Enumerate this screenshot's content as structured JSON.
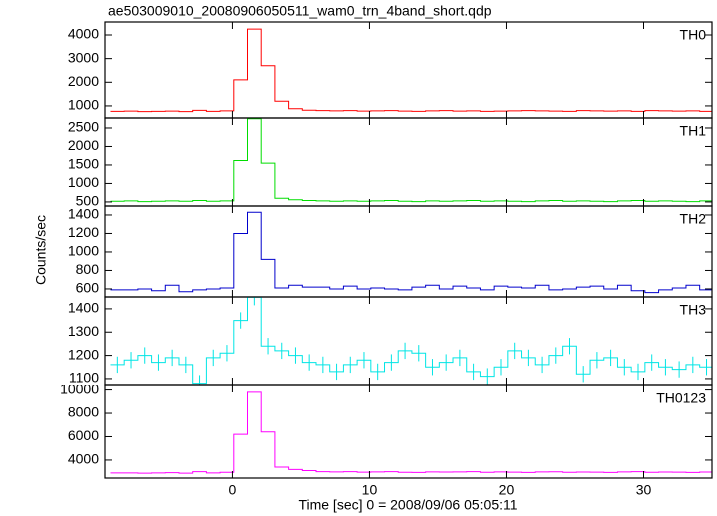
{
  "chart_data": [
    {
      "type": "step",
      "title": "ae503009010_20080906050511_wam0_trn_4band_short.qdp",
      "xlim": [
        -9.3,
        35
      ],
      "xticks": [
        0,
        10,
        20,
        30
      ],
      "ylim": [
        490,
        4550
      ],
      "yticks": [
        1000,
        2000,
        3000,
        4000
      ],
      "series": [
        {
          "name": "TH0",
          "color": "#ff0000",
          "x": [
            -8.4,
            -7.4,
            -6.4,
            -5.4,
            -4.4,
            -3.4,
            -2.4,
            -1.4,
            -0.4,
            0.6,
            1.6,
            2.6,
            3.6,
            4.6,
            5.6,
            6.6,
            7.6,
            8.6,
            9.6,
            10.6,
            11.6,
            12.6,
            13.6,
            14.6,
            15.6,
            16.6,
            17.6,
            18.6,
            19.6,
            20.6,
            21.6,
            22.6,
            23.6,
            24.6,
            25.6,
            26.6,
            27.6,
            28.6,
            29.6,
            30.6,
            31.6,
            32.6,
            33.6,
            34.6
          ],
          "values": [
            770,
            780,
            760,
            770,
            780,
            760,
            810,
            770,
            790,
            2100,
            4250,
            2700,
            1200,
            880,
            820,
            800,
            790,
            800,
            780,
            790,
            800,
            780,
            770,
            790,
            800,
            780,
            790,
            770,
            780,
            790,
            800,
            790,
            780,
            770,
            800,
            790,
            780,
            790,
            770,
            800,
            790,
            780,
            790,
            770
          ]
        }
      ]
    },
    {
      "type": "step",
      "xlim": [
        -9.3,
        35
      ],
      "xticks": [
        0,
        10,
        20,
        30
      ],
      "ylim": [
        390,
        2770
      ],
      "yticks": [
        500,
        1000,
        1500,
        2000,
        2500
      ],
      "series": [
        {
          "name": "TH1",
          "color": "#00dd00",
          "x": [
            -8.4,
            -7.4,
            -6.4,
            -5.4,
            -4.4,
            -3.4,
            -2.4,
            -1.4,
            -0.4,
            0.6,
            1.6,
            2.6,
            3.6,
            4.6,
            5.6,
            6.6,
            7.6,
            8.6,
            9.6,
            10.6,
            11.6,
            12.6,
            13.6,
            14.6,
            15.6,
            16.6,
            17.6,
            18.6,
            19.6,
            20.6,
            21.6,
            22.6,
            23.6,
            24.6,
            25.6,
            26.6,
            27.6,
            28.6,
            29.6,
            30.6,
            31.6,
            32.6,
            33.6,
            34.6
          ],
          "values": [
            520,
            530,
            510,
            520,
            530,
            520,
            540,
            520,
            530,
            1620,
            2750,
            1550,
            600,
            560,
            540,
            530,
            520,
            530,
            520,
            530,
            540,
            520,
            510,
            530,
            520,
            530,
            540,
            520,
            530,
            520,
            510,
            530,
            540,
            520,
            530,
            520,
            510,
            530,
            540,
            520,
            530,
            520,
            510,
            530
          ]
        }
      ]
    },
    {
      "type": "step",
      "ylabel": "Counts/sec",
      "xlim": [
        -9.3,
        35
      ],
      "xticks": [
        0,
        10,
        20,
        30
      ],
      "ylim": [
        513,
        1497
      ],
      "yticks": [
        600,
        800,
        1000,
        1200,
        1400
      ],
      "series": [
        {
          "name": "TH2",
          "color": "#0000cc",
          "x": [
            -8.4,
            -7.4,
            -6.4,
            -5.4,
            -4.4,
            -3.4,
            -2.4,
            -1.4,
            -0.4,
            0.6,
            1.6,
            2.6,
            3.6,
            4.6,
            5.6,
            6.6,
            7.6,
            8.6,
            9.6,
            10.6,
            11.6,
            12.6,
            13.6,
            14.6,
            15.6,
            16.6,
            17.6,
            18.6,
            19.6,
            20.6,
            21.6,
            22.6,
            23.6,
            24.6,
            25.6,
            26.6,
            27.6,
            28.6,
            29.6,
            30.6,
            31.6,
            32.6,
            33.6,
            34.6
          ],
          "values": [
            590,
            590,
            600,
            580,
            640,
            570,
            590,
            600,
            610,
            1200,
            1430,
            920,
            610,
            640,
            620,
            620,
            600,
            630,
            600,
            610,
            600,
            590,
            620,
            640,
            600,
            630,
            610,
            590,
            630,
            620,
            610,
            640,
            590,
            600,
            620,
            630,
            600,
            640,
            580,
            560,
            590,
            610,
            640,
            590
          ]
        }
      ]
    },
    {
      "type": "step",
      "xlim": [
        -9.3,
        35
      ],
      "xticks": [
        0,
        10,
        20,
        30
      ],
      "ylim": [
        1074,
        1451
      ],
      "yticks": [
        1100,
        1200,
        1300,
        1400
      ],
      "series": [
        {
          "name": "TH3",
          "color": "#00e5e5",
          "x": [
            -8.4,
            -7.4,
            -6.4,
            -5.4,
            -4.4,
            -3.4,
            -2.4,
            -1.4,
            -0.4,
            0.6,
            1.6,
            2.6,
            3.6,
            4.6,
            5.6,
            6.6,
            7.6,
            8.6,
            9.6,
            10.6,
            11.6,
            12.6,
            13.6,
            14.6,
            15.6,
            16.6,
            17.6,
            18.6,
            19.6,
            20.6,
            21.6,
            22.6,
            23.6,
            24.6,
            25.6,
            26.6,
            27.6,
            28.6,
            29.6,
            30.6,
            31.6,
            32.6,
            33.6,
            34.6
          ],
          "values": [
            1160,
            1180,
            1200,
            1170,
            1190,
            1160,
            1080,
            1190,
            1210,
            1350,
            1450,
            1240,
            1220,
            1200,
            1170,
            1160,
            1130,
            1160,
            1180,
            1130,
            1170,
            1220,
            1210,
            1150,
            1170,
            1190,
            1130,
            1110,
            1150,
            1220,
            1190,
            1160,
            1200,
            1240,
            1120,
            1180,
            1190,
            1150,
            1130,
            1170,
            1150,
            1140,
            1160,
            1150
          ],
          "errors": [
            35,
            35,
            35,
            35,
            35,
            35,
            35,
            35,
            35,
            35,
            35,
            35,
            35,
            35,
            35,
            35,
            35,
            35,
            35,
            35,
            35,
            35,
            35,
            35,
            35,
            35,
            35,
            35,
            35,
            35,
            35,
            35,
            35,
            35,
            35,
            35,
            35,
            35,
            35,
            35,
            35,
            35,
            35,
            35
          ]
        }
      ]
    },
    {
      "type": "step",
      "xlabel": "Time [sec] 0 = 2008/09/06 05:05:11",
      "xlim": [
        -9.3,
        35
      ],
      "xticks": [
        0,
        10,
        20,
        30
      ],
      "ylim": [
        2460,
        10390
      ],
      "yticks": [
        4000,
        6000,
        8000,
        10000
      ],
      "series": [
        {
          "name": "TH0123",
          "color": "#ff00ff",
          "x": [
            -8.4,
            -7.4,
            -6.4,
            -5.4,
            -4.4,
            -3.4,
            -2.4,
            -1.4,
            -0.4,
            0.6,
            1.6,
            2.6,
            3.6,
            4.6,
            5.6,
            6.6,
            7.6,
            8.6,
            9.6,
            10.6,
            11.6,
            12.6,
            13.6,
            14.6,
            15.6,
            16.6,
            17.6,
            18.6,
            19.6,
            20.6,
            21.6,
            22.6,
            23.6,
            24.6,
            25.6,
            26.6,
            27.6,
            28.6,
            29.6,
            30.6,
            31.6,
            32.6,
            33.6,
            34.6
          ],
          "values": [
            2900,
            2900,
            2880,
            2900,
            2920,
            2880,
            3000,
            2900,
            2950,
            6200,
            9800,
            6400,
            3400,
            3200,
            3100,
            3000,
            2980,
            3000,
            2960,
            2980,
            3000,
            2950,
            2940,
            2980,
            2970,
            2980,
            3000,
            2950,
            2980,
            2960,
            2940,
            2980,
            2990,
            2950,
            2970,
            2960,
            2940,
            2980,
            3000,
            2950,
            2970,
            2960,
            2940,
            2970
          ]
        }
      ]
    }
  ]
}
